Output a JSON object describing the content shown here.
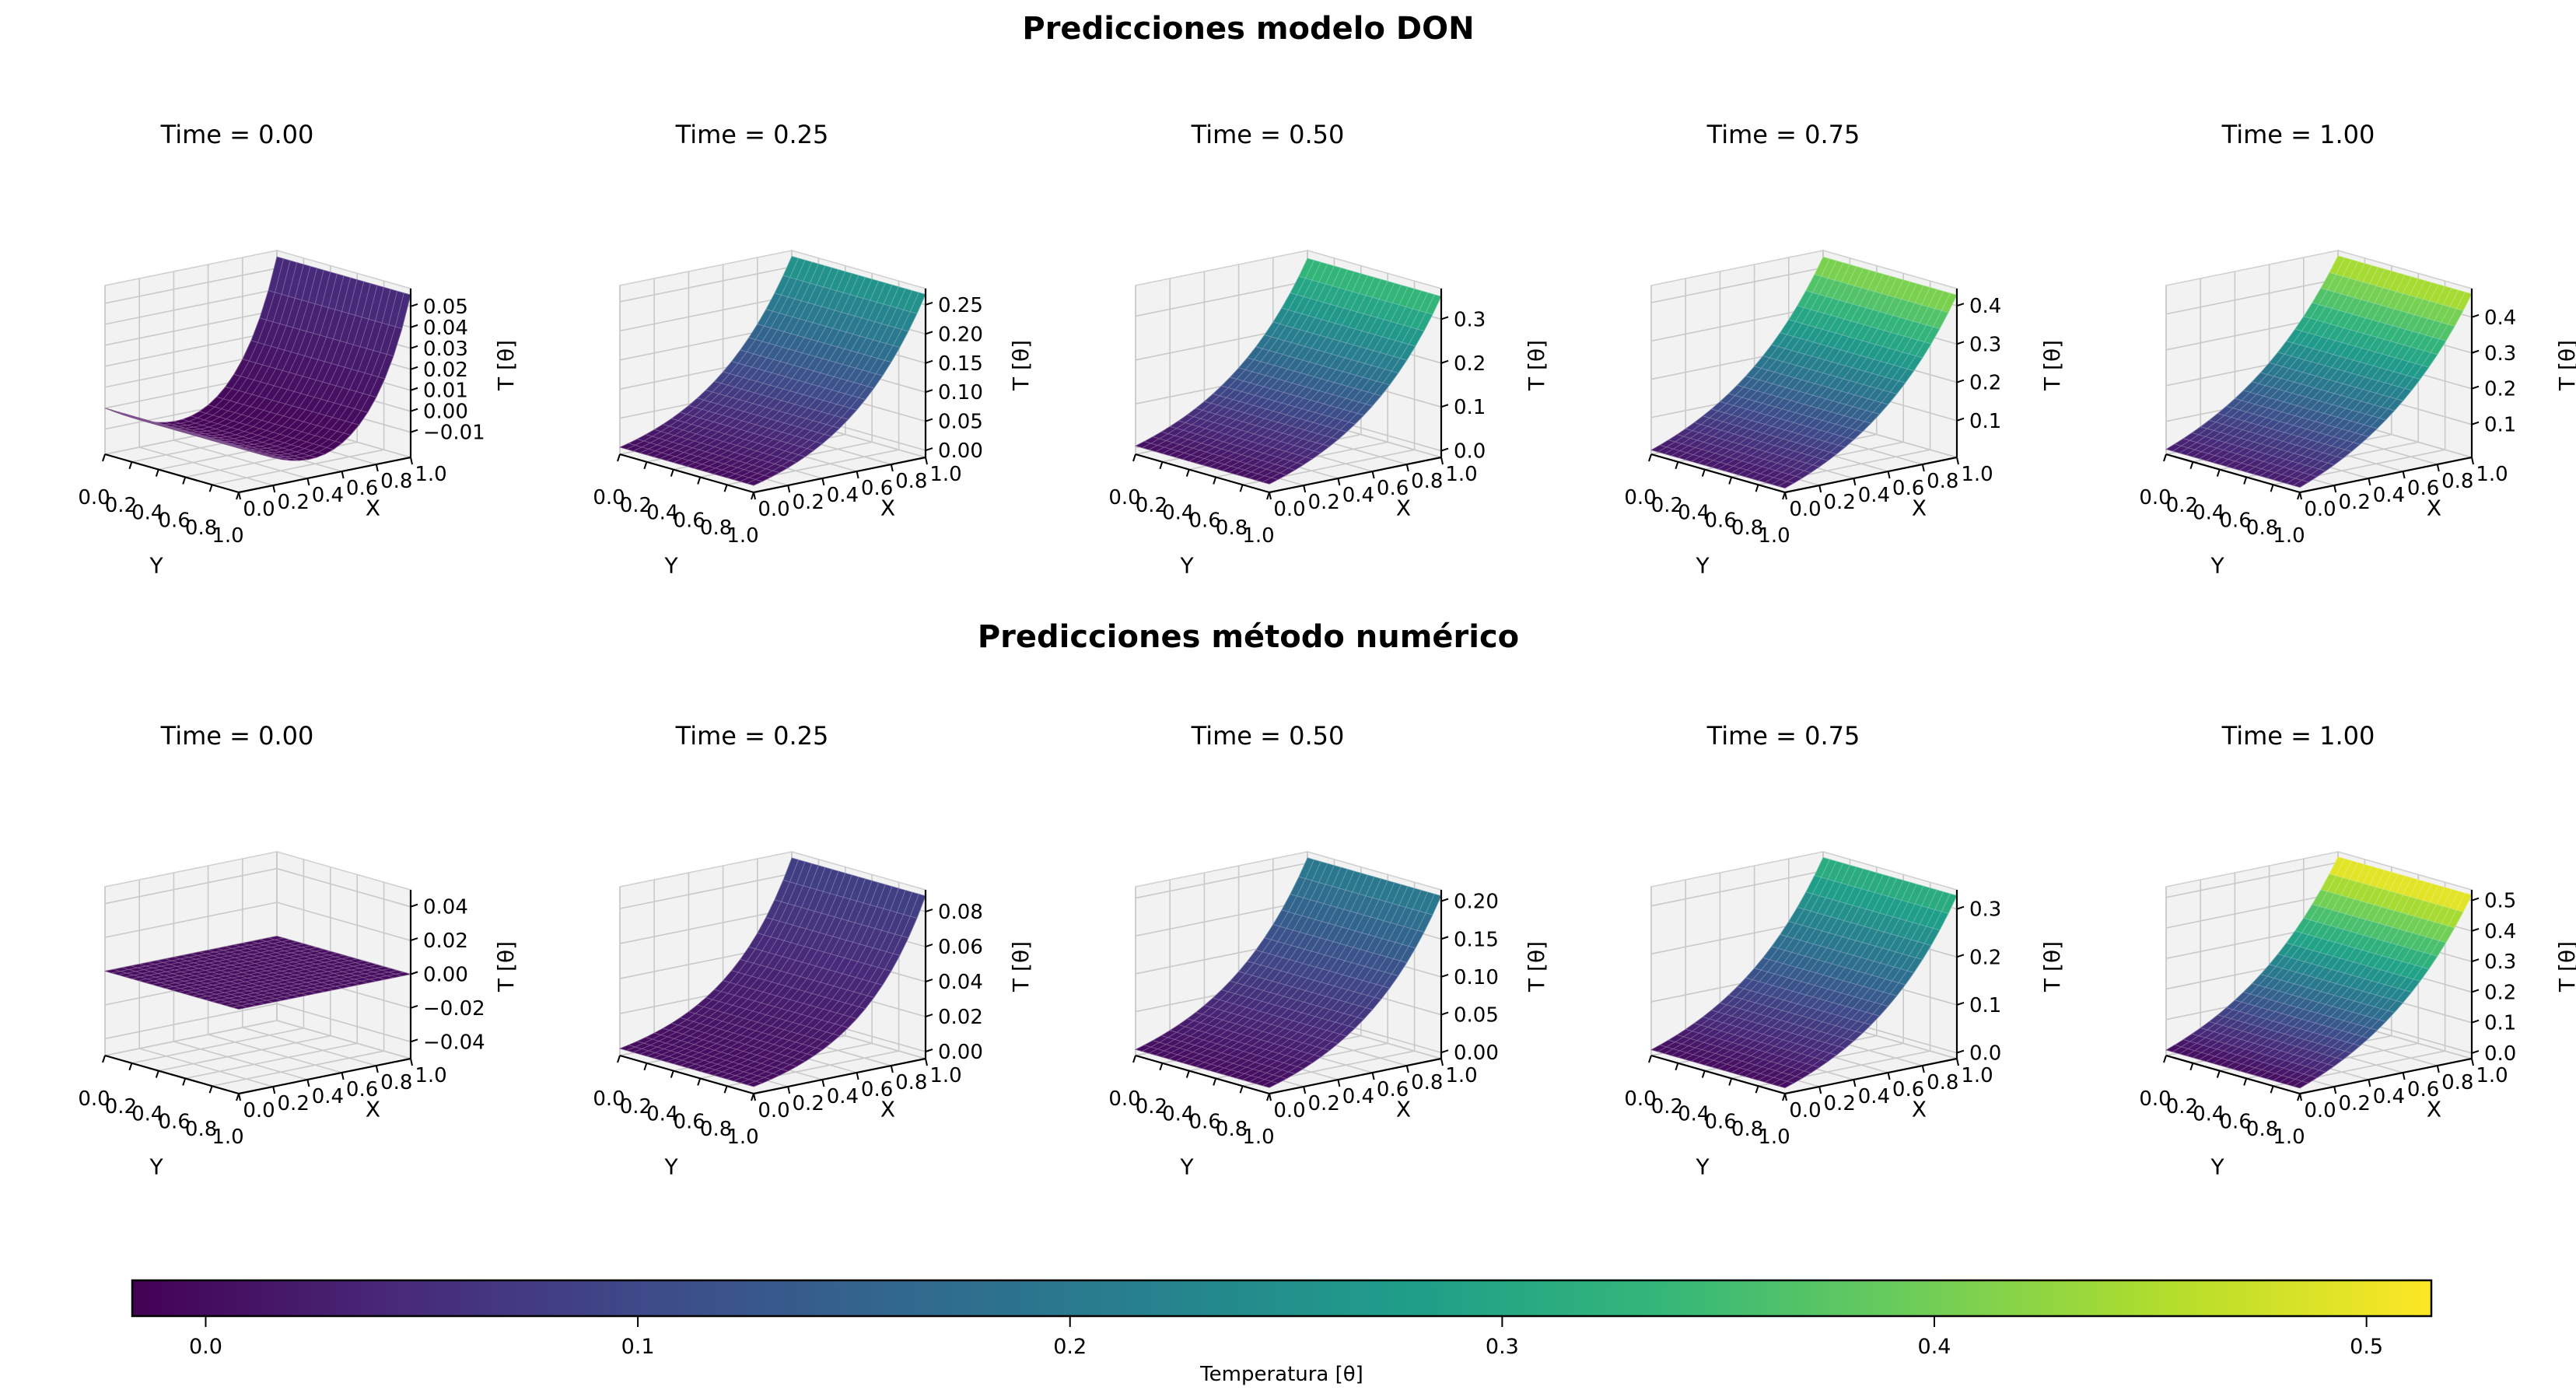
{
  "figure": {
    "background": "#ffffff"
  },
  "colors": {
    "viridis": [
      "#440154",
      "#482878",
      "#3e4a89",
      "#31688e",
      "#26828e",
      "#1f9e89",
      "#35b779",
      "#6ece58",
      "#b5de2b",
      "#fde725"
    ],
    "pane": "#f2f2f2",
    "grid": "#c9c9c9",
    "pane_edge": "#cfcfcf",
    "axis_line": "#000000"
  },
  "chart_data": {
    "type": "3d-surface-grid",
    "colormap": "viridis",
    "color_range": {
      "vmin": -0.017,
      "vmax": 0.515
    },
    "axes": {
      "x": {
        "label": "X",
        "ticks": [
          {
            "v": 0.0,
            "label": "0.0"
          },
          {
            "v": 0.2,
            "label": "0.2"
          },
          {
            "v": 0.4,
            "label": "0.4"
          },
          {
            "v": 0.6,
            "label": "0.6"
          },
          {
            "v": 0.8,
            "label": "0.8"
          },
          {
            "v": 1.0,
            "label": "1.0"
          }
        ]
      },
      "y": {
        "label": "Y",
        "ticks": [
          {
            "v": 0.0,
            "label": "0.0"
          },
          {
            "v": 0.2,
            "label": "0.2"
          },
          {
            "v": 0.4,
            "label": "0.4"
          },
          {
            "v": 0.6,
            "label": "0.6"
          },
          {
            "v": 0.8,
            "label": "0.8"
          },
          {
            "v": 1.0,
            "label": "1.0"
          }
        ]
      },
      "z": {
        "label": "T [θ]"
      }
    },
    "rows": [
      {
        "title": "Predicciones modelo DON",
        "subplots": [
          {
            "title": "Time = 0.00",
            "time": 0.0,
            "zlim": [
              -0.022,
              0.0585
            ],
            "zticks": [
              {
                "v": -0.01,
                "label": "−0.01"
              },
              {
                "v": 0.0,
                "label": "0.00"
              },
              {
                "v": 0.01,
                "label": "0.01"
              },
              {
                "v": 0.02,
                "label": "0.02"
              },
              {
                "v": 0.03,
                "label": "0.03"
              },
              {
                "v": 0.04,
                "label": "0.04"
              },
              {
                "v": 0.05,
                "label": "0.05"
              }
            ],
            "surface": {
              "base": 0.0,
              "amp": 0.0555,
              "k": 5.2,
              "dip": 0.016
            }
          },
          {
            "title": "Time = 0.25",
            "time": 0.25,
            "zlim": [
              -0.012,
              0.278
            ],
            "zticks": [
              {
                "v": 0.0,
                "label": "0.00"
              },
              {
                "v": 0.05,
                "label": "0.05"
              },
              {
                "v": 0.1,
                "label": "0.10"
              },
              {
                "v": 0.15,
                "label": "0.15"
              },
              {
                "v": 0.2,
                "label": "0.20"
              },
              {
                "v": 0.25,
                "label": "0.25"
              }
            ],
            "surface": {
              "base": 0.0,
              "amp": 0.268,
              "k": 2.0,
              "dip": 0.004
            }
          },
          {
            "title": "Time = 0.50",
            "time": 0.5,
            "zlim": [
              -0.015,
              0.37
            ],
            "zticks": [
              {
                "v": 0.0,
                "label": "0.0"
              },
              {
                "v": 0.1,
                "label": "0.1"
              },
              {
                "v": 0.2,
                "label": "0.2"
              },
              {
                "v": 0.3,
                "label": "0.3"
              }
            ],
            "surface": {
              "base": 0.004,
              "amp": 0.352,
              "k": 1.9,
              "dip": 0
            }
          },
          {
            "title": "Time = 0.75",
            "time": 0.75,
            "zlim": [
              0.004,
              0.445
            ],
            "zticks": [
              {
                "v": 0.1,
                "label": "0.1"
              },
              {
                "v": 0.2,
                "label": "0.2"
              },
              {
                "v": 0.3,
                "label": "0.3"
              },
              {
                "v": 0.4,
                "label": "0.4"
              }
            ],
            "surface": {
              "base": 0.015,
              "amp": 0.428,
              "k": 1.7,
              "dip": 0
            }
          },
          {
            "title": "Time = 1.00",
            "time": 1.0,
            "zlim": [
              0.008,
              0.48
            ],
            "zticks": [
              {
                "v": 0.1,
                "label": "0.1"
              },
              {
                "v": 0.2,
                "label": "0.2"
              },
              {
                "v": 0.3,
                "label": "0.3"
              },
              {
                "v": 0.4,
                "label": "0.4"
              }
            ],
            "surface": {
              "base": 0.022,
              "amp": 0.465,
              "k": 1.55,
              "dip": 0
            }
          }
        ]
      },
      {
        "title": "Predicciones método numérico",
        "subplots": [
          {
            "title": "Time = 0.00",
            "time": 0.0,
            "zlim": [
              -0.05,
              0.05
            ],
            "zticks": [
              {
                "v": -0.04,
                "label": "−0.04"
              },
              {
                "v": -0.02,
                "label": "−0.02"
              },
              {
                "v": 0.0,
                "label": "0.00"
              },
              {
                "v": 0.02,
                "label": "0.02"
              },
              {
                "v": 0.04,
                "label": "0.04"
              }
            ],
            "surface": {
              "base": 0.0,
              "amp": 0.0,
              "k": 1.0,
              "dip": 0
            }
          },
          {
            "title": "Time = 0.25",
            "time": 0.25,
            "zlim": [
              -0.004,
              0.0925
            ],
            "zticks": [
              {
                "v": 0.0,
                "label": "0.00"
              },
              {
                "v": 0.02,
                "label": "0.02"
              },
              {
                "v": 0.04,
                "label": "0.04"
              },
              {
                "v": 0.06,
                "label": "0.06"
              },
              {
                "v": 0.08,
                "label": "0.08"
              }
            ],
            "surface": {
              "base": 0.0,
              "amp": 0.089,
              "k": 2.6,
              "dip": 0
            }
          },
          {
            "title": "Time = 0.50",
            "time": 0.5,
            "zlim": [
              -0.008,
              0.215
            ],
            "zticks": [
              {
                "v": 0.0,
                "label": "0.00"
              },
              {
                "v": 0.05,
                "label": "0.05"
              },
              {
                "v": 0.1,
                "label": "0.10"
              },
              {
                "v": 0.15,
                "label": "0.15"
              },
              {
                "v": 0.2,
                "label": "0.20"
              }
            ],
            "surface": {
              "base": 0.0,
              "amp": 0.207,
              "k": 2.0,
              "dip": 0
            }
          },
          {
            "title": "Time = 0.75",
            "time": 0.75,
            "zlim": [
              -0.012,
              0.34
            ],
            "zticks": [
              {
                "v": 0.0,
                "label": "0.0"
              },
              {
                "v": 0.1,
                "label": "0.1"
              },
              {
                "v": 0.2,
                "label": "0.2"
              },
              {
                "v": 0.3,
                "label": "0.3"
              }
            ],
            "surface": {
              "base": 0.0,
              "amp": 0.328,
              "k": 1.8,
              "dip": 0
            }
          },
          {
            "title": "Time = 1.00",
            "time": 1.0,
            "zlim": [
              -0.018,
              0.535
            ],
            "zticks": [
              {
                "v": 0.0,
                "label": "0.0"
              },
              {
                "v": 0.1,
                "label": "0.1"
              },
              {
                "v": 0.2,
                "label": "0.2"
              },
              {
                "v": 0.3,
                "label": "0.3"
              },
              {
                "v": 0.4,
                "label": "0.4"
              },
              {
                "v": 0.5,
                "label": "0.5"
              }
            ],
            "surface": {
              "base": 0.0,
              "amp": 0.518,
              "k": 1.6,
              "dip": 0
            }
          }
        ]
      }
    ],
    "colorbar": {
      "label": "Temperatura [θ]",
      "vmin": -0.017,
      "vmax": 0.515,
      "ticks": [
        {
          "v": 0.0,
          "label": "0.0"
        },
        {
          "v": 0.1,
          "label": "0.1"
        },
        {
          "v": 0.2,
          "label": "0.2"
        },
        {
          "v": 0.3,
          "label": "0.3"
        },
        {
          "v": 0.4,
          "label": "0.4"
        },
        {
          "v": 0.5,
          "label": "0.5"
        }
      ]
    }
  }
}
